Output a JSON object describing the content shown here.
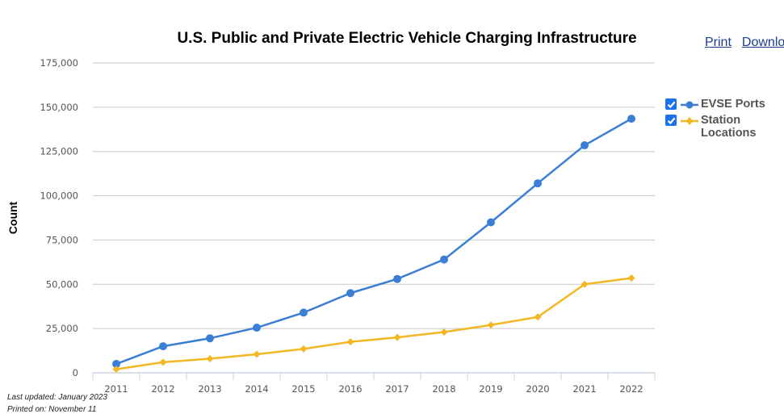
{
  "header": {
    "print_label": "Print",
    "download_label": "Download"
  },
  "footer": {
    "last_updated": "Last updated: January 2023",
    "printed_on": "Printed on: November 11"
  },
  "chart_data": {
    "type": "line",
    "title": "U.S. Public and Private Electric Vehicle Charging Infrastructure",
    "xlabel": "",
    "ylabel": "Count",
    "categories": [
      "2011",
      "2012",
      "2013",
      "2014",
      "2015",
      "2016",
      "2017",
      "2018",
      "2019",
      "2020",
      "2021",
      "2022"
    ],
    "ylim": [
      0,
      175000
    ],
    "yticks": [
      0,
      25000,
      50000,
      75000,
      100000,
      125000,
      150000,
      175000
    ],
    "ytick_labels": [
      "0",
      "25,000",
      "50,000",
      "75,000",
      "100,000",
      "125,000",
      "150,000",
      "175,000"
    ],
    "grid": true,
    "legend_position": "right",
    "series": [
      {
        "name": "EVSE Ports",
        "color": "#3a7fd5",
        "marker": "circle",
        "checked": true,
        "values": [
          5000,
          15000,
          19500,
          25500,
          34000,
          45000,
          53000,
          64000,
          85000,
          107000,
          128500,
          143500
        ]
      },
      {
        "name": "Station Locations",
        "color": "#f2b824",
        "marker": "diamond",
        "checked": true,
        "values": [
          2000,
          6000,
          8000,
          10500,
          13500,
          17500,
          20000,
          23000,
          27000,
          31500,
          50000,
          53500
        ]
      }
    ]
  }
}
